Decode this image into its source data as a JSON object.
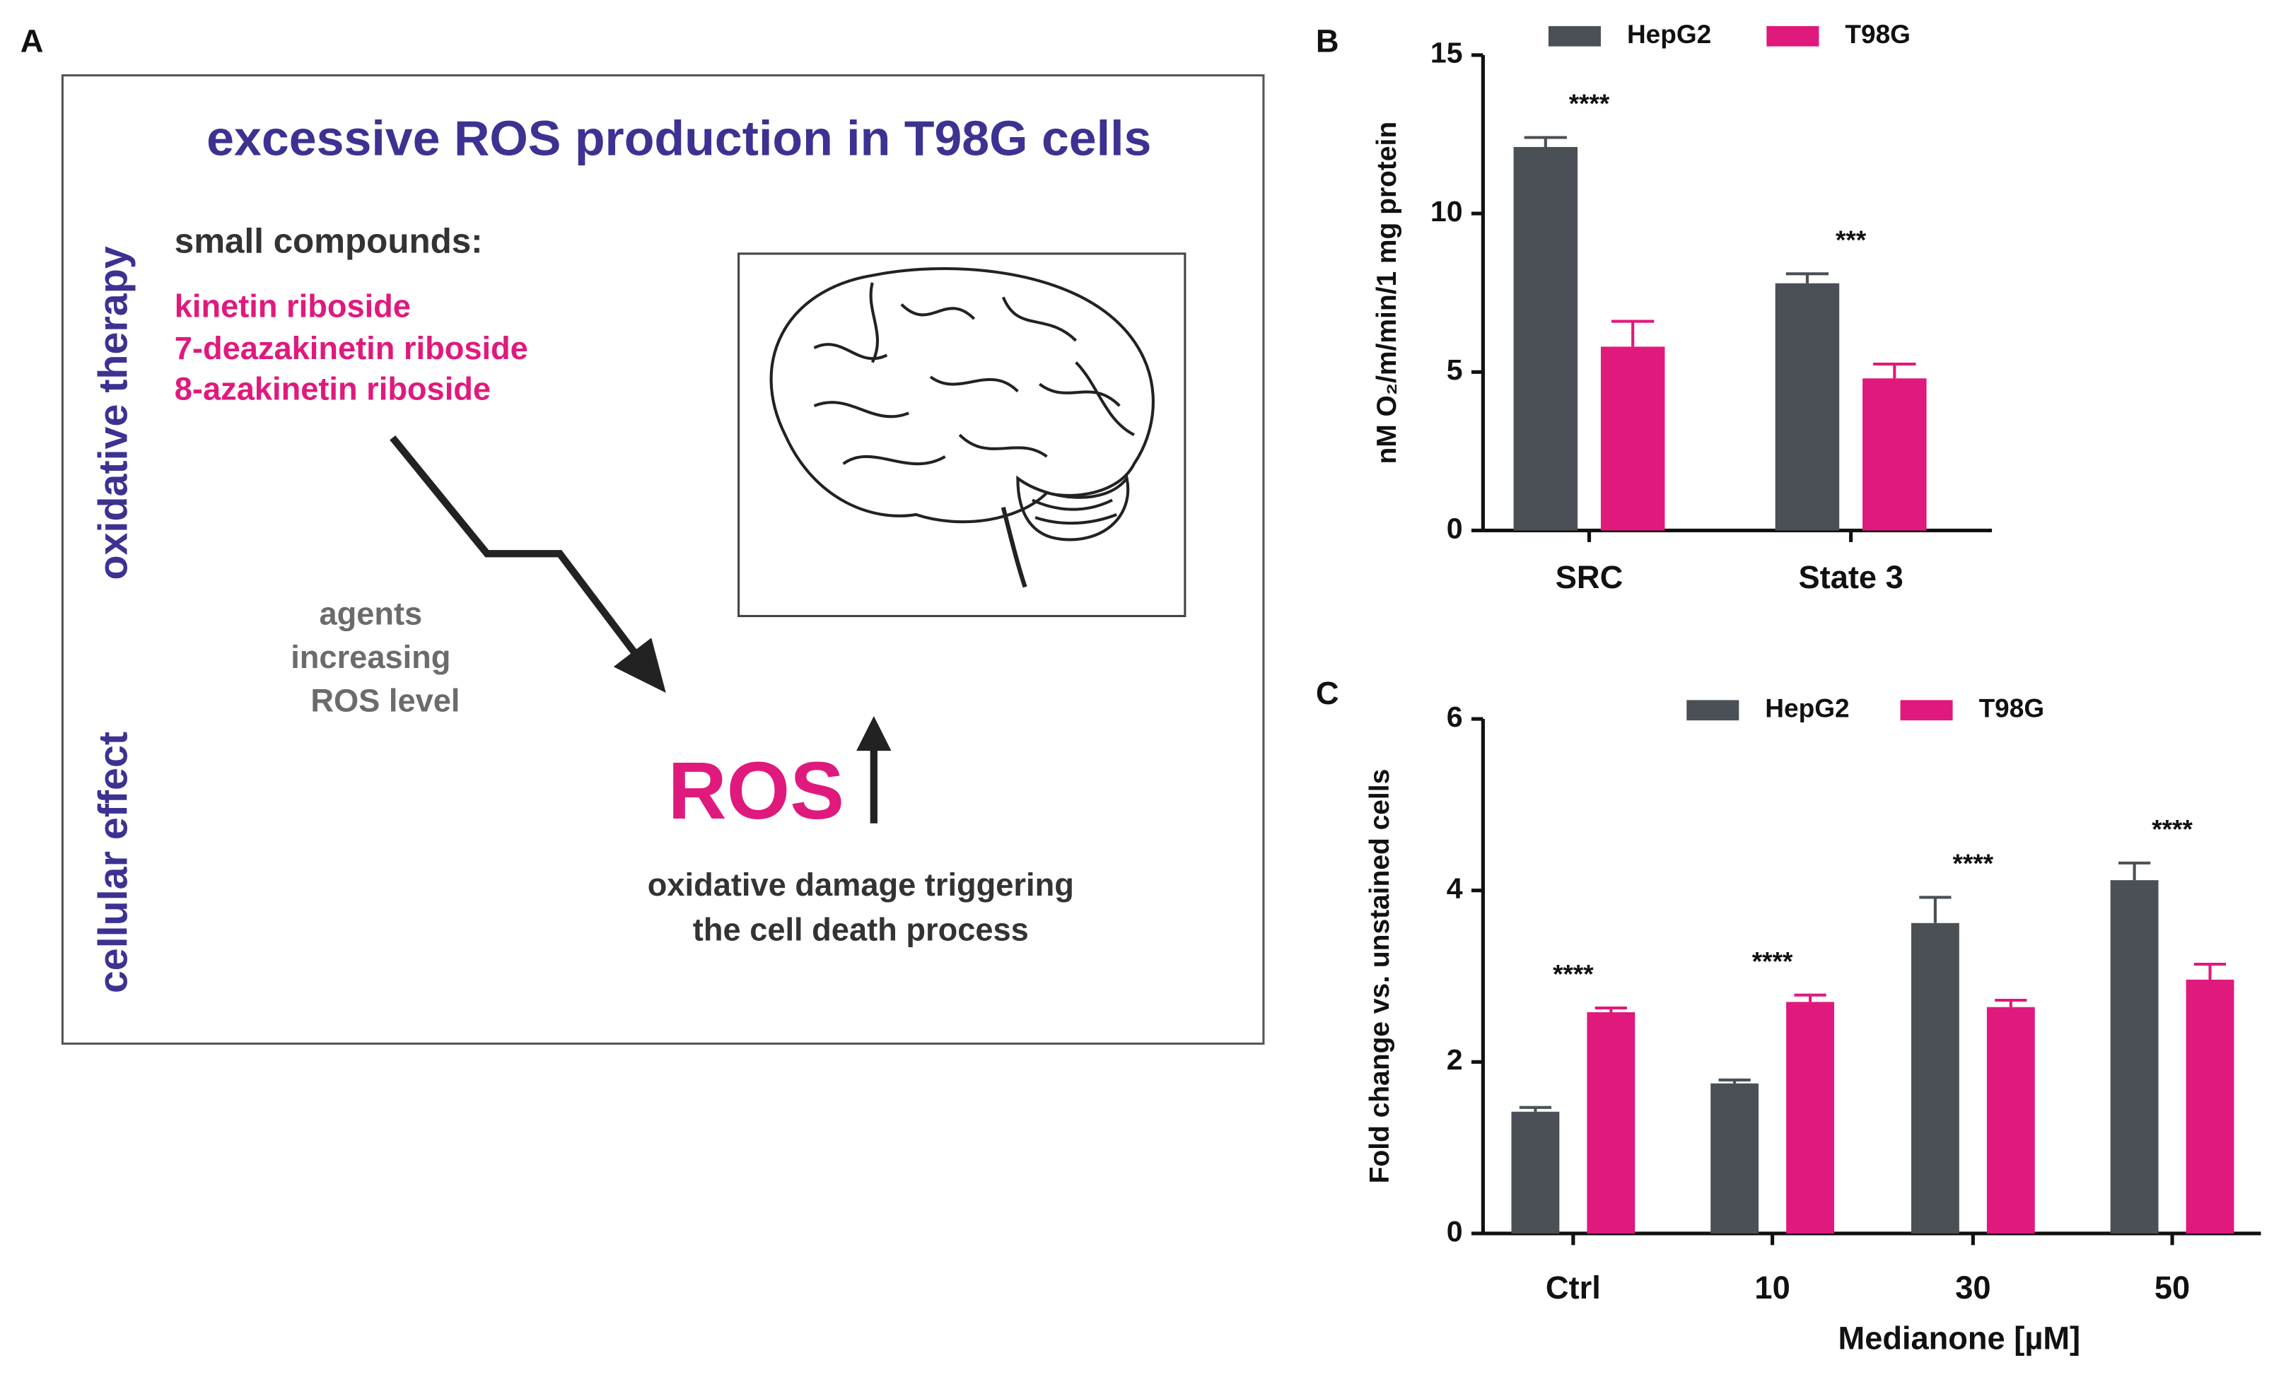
{
  "diagram": {
    "label": "A",
    "title": "excessive ROS production in T98G cells",
    "side_labels": [
      "oxidative therapy",
      "cellular effect"
    ],
    "compounds_heading": "small compounds:",
    "compounds": [
      "kinetin riboside",
      "7-deazakinetin riboside",
      "8-azakinetin riboside"
    ],
    "agents_lines": [
      "agents",
      "increasing",
      "ROS level"
    ],
    "ros": "ROS",
    "effect_lines": [
      "oxidative  damage triggering",
      "the cell death process"
    ]
  },
  "chart_data": [
    {
      "type": "bar",
      "label": "B",
      "ylabel": "nM O₂/m/min/1 mg protein",
      "categories": [
        "SRC",
        "State 3"
      ],
      "series": [
        {
          "name": "HepG2",
          "color": "#4a5055",
          "values": [
            12.1,
            7.8
          ],
          "errors": [
            0.3,
            0.3
          ]
        },
        {
          "name": "T98G",
          "color": "#e0197d",
          "values": [
            5.8,
            4.8
          ],
          "errors": [
            0.8,
            0.45
          ]
        }
      ],
      "annotations": [
        "****",
        "***"
      ],
      "ylim": [
        0,
        15
      ],
      "yticks": [
        0,
        5,
        10,
        15
      ]
    },
    {
      "type": "bar",
      "label": "C",
      "ylabel": "Fold change vs. unstained cells",
      "xlabel": "Medianone [µM]",
      "categories": [
        "Ctrl",
        "10",
        "30",
        "50"
      ],
      "series": [
        {
          "name": "HepG2",
          "color": "#4a5055",
          "values": [
            1.42,
            1.75,
            3.62,
            4.12
          ],
          "errors": [
            0.05,
            0.04,
            0.3,
            0.2
          ]
        },
        {
          "name": "T98G",
          "color": "#e0197d",
          "values": [
            2.58,
            2.7,
            2.64,
            2.96
          ],
          "errors": [
            0.05,
            0.08,
            0.08,
            0.18
          ]
        }
      ],
      "annotations": [
        "****",
        "****",
        "****",
        "****"
      ],
      "ylim": [
        0,
        6
      ],
      "yticks": [
        0,
        2,
        4,
        6
      ]
    }
  ]
}
